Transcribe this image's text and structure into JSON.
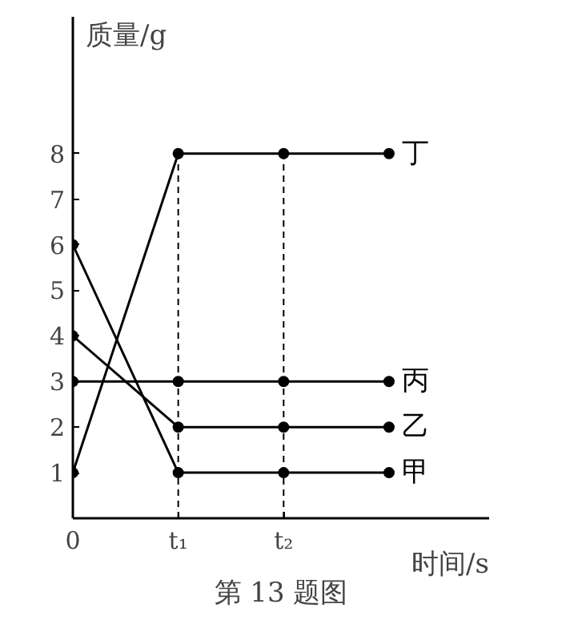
{
  "chart_data": {
    "type": "line",
    "title": "第 13 题图",
    "xlabel": "时间/s",
    "ylabel": "质量/g",
    "categories": [
      "0",
      "t₁",
      "t₂",
      null
    ],
    "series": [
      {
        "name": "丁",
        "color": "#000000",
        "values": [
          1,
          8,
          8,
          8
        ]
      },
      {
        "name": "丙",
        "color": "#000000",
        "values": [
          3,
          3,
          3,
          3
        ]
      },
      {
        "name": "乙",
        "color": "#000000",
        "values": [
          4,
          2,
          2,
          2
        ]
      },
      {
        "name": "甲",
        "color": "#000000",
        "values": [
          6,
          1,
          1,
          1
        ]
      }
    ],
    "ylim": [
      0,
      11
    ],
    "yticks": [
      1,
      2,
      3,
      4,
      5,
      6,
      7,
      8
    ],
    "ref_lines": [
      {
        "axis": "x",
        "value": "t₁",
        "label": null,
        "line_style": "dashed"
      },
      {
        "axis": "x",
        "value": "t₂",
        "label": null,
        "line_style": "dashed"
      }
    ],
    "grid": false,
    "marker": "circle",
    "line_style": "solid"
  }
}
